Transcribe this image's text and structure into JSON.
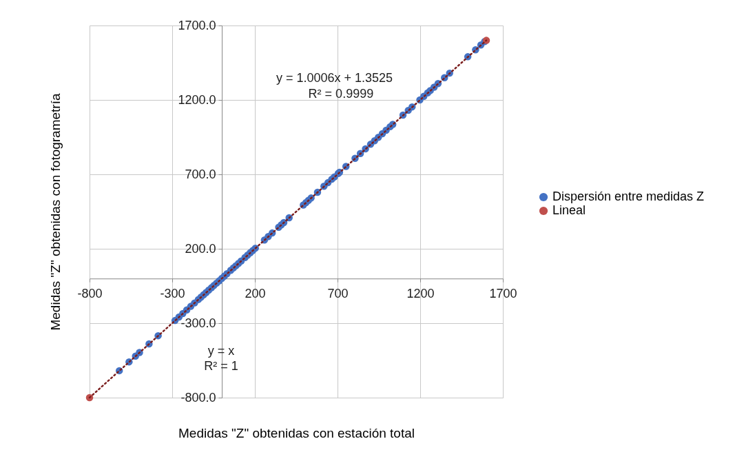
{
  "chart_data": {
    "type": "scatter",
    "xlabel": "Medidas \"Z\" obtenidas con estación total",
    "ylabel": "Medidas \"Z\" obtenidas con fotogrametría",
    "xlim": [
      -800,
      1700
    ],
    "ylim": [
      -800,
      1700
    ],
    "xticks": [
      -800,
      -300,
      200,
      700,
      1200,
      1700
    ],
    "yticks": [
      {
        "value": -800,
        "label": "-800.0"
      },
      {
        "value": -300,
        "label": "-300.0"
      },
      {
        "value": 200,
        "label": "200.0"
      },
      {
        "value": 700,
        "label": "700.0"
      },
      {
        "value": 1200,
        "label": "1200.0"
      },
      {
        "value": 1700,
        "label": "1700.0"
      }
    ],
    "grid": true,
    "legend": "right",
    "marker": "circle",
    "annotations": [
      "y = 1.0006x + 1.3525",
      "R² = 0.9999",
      "y = x",
      "R² = 1"
    ],
    "series": [
      {
        "name": "Dispersión entre medidas Z",
        "color": "#4472c4",
        "x": [
          -620,
          -561,
          -522,
          -498,
          -440,
          -385,
          -283,
          -259,
          -236,
          -212,
          -188,
          -165,
          -142,
          -126,
          -110,
          -95,
          -79,
          -63,
          -48,
          -32,
          -16,
          0,
          15,
          31,
          54,
          70,
          85,
          101,
          117,
          140,
          156,
          172,
          187,
          203,
          258,
          281,
          305,
          344,
          360,
          375,
          407,
          493,
          509,
          524,
          540,
          579,
          618,
          642,
          665,
          681,
          704,
          712,
          751,
          806,
          838,
          869,
          900,
          924,
          947,
          971,
          994,
          1018,
          1034,
          1096,
          1128,
          1151,
          1198,
          1222,
          1245,
          1261,
          1284,
          1308,
          1347,
          1378,
          1488,
          1535,
          1567,
          1590
        ],
        "values": [
          -619,
          -560,
          -521,
          -497,
          -439,
          -384,
          -282,
          -258,
          -235,
          -211,
          -187,
          -164,
          -141,
          -125,
          -109,
          -94,
          -78,
          -62,
          -47,
          -31,
          -15,
          1,
          16,
          32,
          55,
          71,
          86,
          102,
          118,
          141,
          157,
          173,
          188,
          204,
          259,
          282,
          306,
          345,
          361,
          376,
          408,
          494,
          510,
          525,
          541,
          580,
          620,
          644,
          667,
          683,
          706,
          714,
          753,
          808,
          840,
          871,
          902,
          926,
          949,
          973,
          996,
          1020,
          1036,
          1098,
          1130,
          1153,
          1200,
          1224,
          1247,
          1263,
          1286,
          1310,
          1349,
          1380,
          1490,
          1537,
          1569,
          1592
        ]
      },
      {
        "name": "Lineal",
        "color": "#c0504d",
        "x": [
          -800,
          1600
        ],
        "values": [
          -800,
          1600
        ]
      },
      {
        "type": "line",
        "color": "#7b1e1e",
        "line_style": "dotted",
        "marker": "none",
        "x": [
          -800,
          1600
        ],
        "values": [
          -800,
          1600
        ]
      }
    ]
  }
}
